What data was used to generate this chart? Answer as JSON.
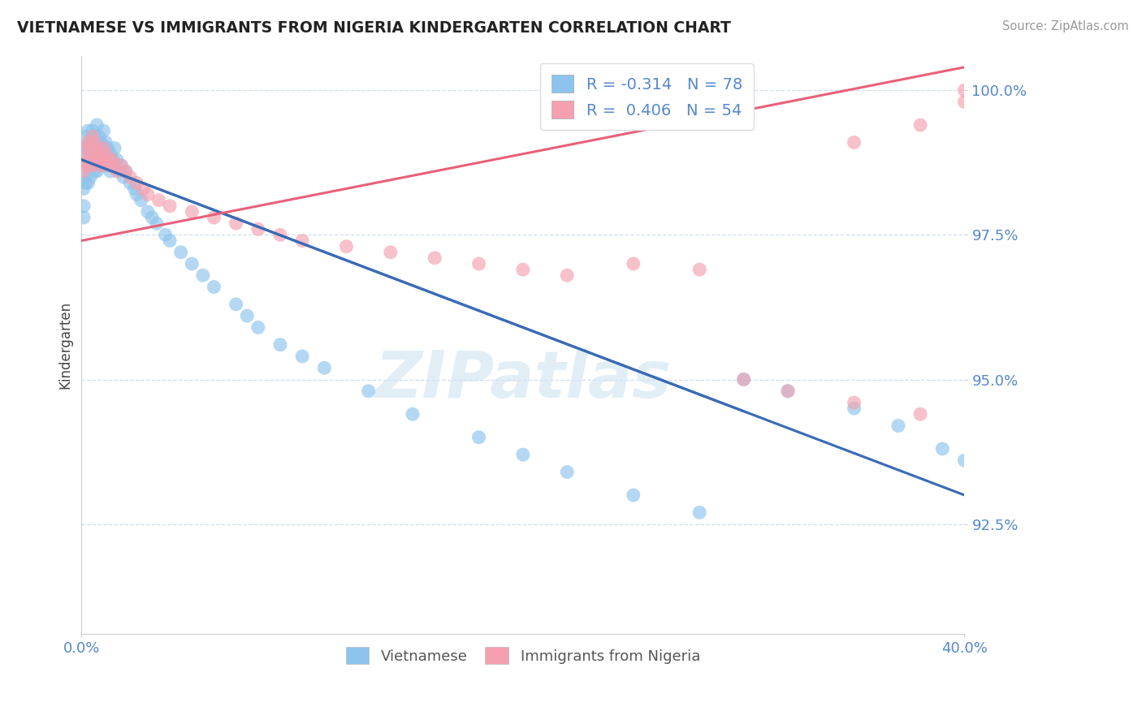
{
  "title": "VIETNAMESE VS IMMIGRANTS FROM NIGERIA KINDERGARTEN CORRELATION CHART",
  "source": "Source: ZipAtlas.com",
  "ylabel": "Kindergarten",
  "watermark": "ZIPatlas",
  "xmin": 0.0,
  "xmax": 0.4,
  "ymin": 0.906,
  "ymax": 1.006,
  "yticks": [
    1.0,
    0.975,
    0.95,
    0.925
  ],
  "ytick_labels": [
    "100.0%",
    "97.5%",
    "95.0%",
    "92.5%"
  ],
  "xtick_labels": [
    "0.0%",
    "40.0%"
  ],
  "legend_r1": "R = -0.314",
  "legend_n1": "N = 78",
  "legend_r2": "R = 0.406",
  "legend_n2": "N = 54",
  "color_blue": "#8CC4ED",
  "color_pink": "#F4A0B0",
  "color_line_blue": "#3B6BB5",
  "color_line_pink": "#E8607A",
  "color_line_dash": "#A8C8E8",
  "axis_color": "#5588CC",
  "grid_color": "#D0DFF0",
  "viet_x": [
    0.001,
    0.001,
    0.001,
    0.001,
    0.001,
    0.002,
    0.002,
    0.002,
    0.003,
    0.003,
    0.003,
    0.003,
    0.004,
    0.004,
    0.004,
    0.005,
    0.005,
    0.005,
    0.006,
    0.006,
    0.006,
    0.007,
    0.007,
    0.007,
    0.007,
    0.008,
    0.008,
    0.009,
    0.009,
    0.01,
    0.01,
    0.01,
    0.011,
    0.011,
    0.012,
    0.012,
    0.013,
    0.013,
    0.014,
    0.015,
    0.015,
    0.016,
    0.017,
    0.018,
    0.019,
    0.02,
    0.022,
    0.024,
    0.025,
    0.027,
    0.03,
    0.032,
    0.034,
    0.038,
    0.04,
    0.045,
    0.05,
    0.055,
    0.06,
    0.07,
    0.075,
    0.08,
    0.09,
    0.1,
    0.11,
    0.13,
    0.15,
    0.18,
    0.2,
    0.22,
    0.25,
    0.28,
    0.3,
    0.32,
    0.35,
    0.37,
    0.39,
    0.4
  ],
  "viet_y": [
    0.99,
    0.985,
    0.983,
    0.98,
    0.978,
    0.992,
    0.988,
    0.984,
    0.993,
    0.99,
    0.987,
    0.984,
    0.991,
    0.988,
    0.985,
    0.993,
    0.99,
    0.987,
    0.992,
    0.989,
    0.986,
    0.994,
    0.991,
    0.989,
    0.986,
    0.992,
    0.989,
    0.991,
    0.988,
    0.993,
    0.99,
    0.987,
    0.991,
    0.988,
    0.99,
    0.987,
    0.989,
    0.986,
    0.988,
    0.99,
    0.987,
    0.988,
    0.986,
    0.987,
    0.985,
    0.986,
    0.984,
    0.983,
    0.982,
    0.981,
    0.979,
    0.978,
    0.977,
    0.975,
    0.974,
    0.972,
    0.97,
    0.968,
    0.966,
    0.963,
    0.961,
    0.959,
    0.956,
    0.954,
    0.952,
    0.948,
    0.944,
    0.94,
    0.937,
    0.934,
    0.93,
    0.927,
    0.95,
    0.948,
    0.945,
    0.942,
    0.938,
    0.936
  ],
  "nig_x": [
    0.001,
    0.001,
    0.002,
    0.002,
    0.003,
    0.003,
    0.004,
    0.004,
    0.005,
    0.005,
    0.006,
    0.006,
    0.007,
    0.007,
    0.008,
    0.009,
    0.01,
    0.01,
    0.011,
    0.012,
    0.013,
    0.014,
    0.015,
    0.016,
    0.018,
    0.02,
    0.022,
    0.025,
    0.028,
    0.03,
    0.035,
    0.04,
    0.05,
    0.06,
    0.07,
    0.08,
    0.09,
    0.1,
    0.12,
    0.14,
    0.16,
    0.18,
    0.2,
    0.22,
    0.25,
    0.28,
    0.3,
    0.32,
    0.35,
    0.38,
    0.4,
    0.4,
    0.38,
    0.35
  ],
  "nig_y": [
    0.988,
    0.986,
    0.99,
    0.987,
    0.991,
    0.988,
    0.99,
    0.987,
    0.992,
    0.989,
    0.991,
    0.988,
    0.99,
    0.987,
    0.989,
    0.988,
    0.99,
    0.987,
    0.989,
    0.988,
    0.987,
    0.988,
    0.987,
    0.986,
    0.987,
    0.986,
    0.985,
    0.984,
    0.983,
    0.982,
    0.981,
    0.98,
    0.979,
    0.978,
    0.977,
    0.976,
    0.975,
    0.974,
    0.973,
    0.972,
    0.971,
    0.97,
    0.969,
    0.968,
    0.97,
    0.969,
    0.95,
    0.948,
    0.946,
    0.944,
    1.0,
    0.998,
    0.994,
    0.991
  ]
}
